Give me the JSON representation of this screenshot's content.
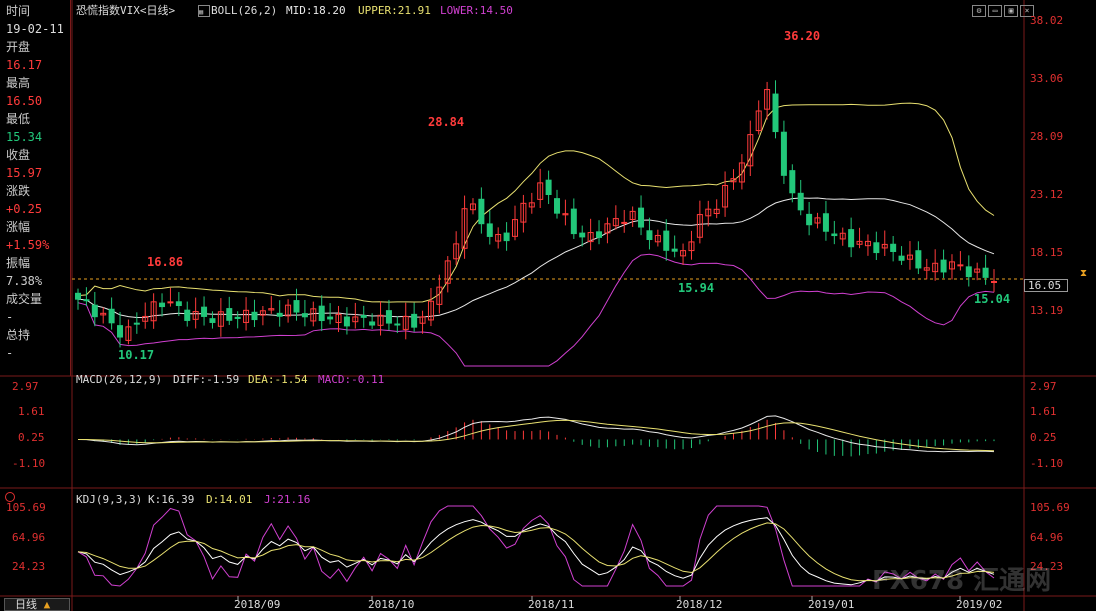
{
  "header": {
    "title": "恐慌指数VIX",
    "period": "<日线>",
    "boll_label": "BOLL(26,2)",
    "boll_mid": "MID:18.20",
    "boll_upper": "UPPER:21.91",
    "boll_lower": "LOWER:14.50",
    "macd_label": "MACD(26,12,9)",
    "macd_diff": "DIFF:-1.59",
    "macd_dea": "DEA:-1.54",
    "macd_macd": "MACD:-0.11",
    "kdj_label": "KDJ(9,3,3)",
    "kdj_k": "K:16.39",
    "kdj_d": "D:14.01",
    "kdj_j": "J:21.16"
  },
  "info_panel": {
    "time_label": "时间",
    "time_value": "19-02-11",
    "open_label": "开盘",
    "open_value": "16.17",
    "high_label": "最高",
    "high_value": "16.50",
    "low_label": "最低",
    "low_value": "15.34",
    "close_label": "收盘",
    "close_value": "15.97",
    "change_label": "涨跌",
    "change_value": "+0.25",
    "pct_label": "涨幅",
    "pct_value": "+1.59%",
    "amp_label": "振幅",
    "amp_value": "7.38%",
    "vol_label": "成交量",
    "vol_value": "-",
    "oi_label": "总持",
    "oi_value": "-"
  },
  "price_axis": [
    "38.02",
    "33.06",
    "28.09",
    "23.12",
    "18.15",
    "13.19"
  ],
  "price_current": "16.05",
  "macd_axis": [
    "2.97",
    "1.61",
    "0.25",
    "-1.10"
  ],
  "kdj_axis": [
    "105.69",
    "64.96",
    "24.23"
  ],
  "annotations": {
    "a1": "16.86",
    "a2": "10.17",
    "a3": "28.84",
    "a4": "15.94",
    "a5": "36.20",
    "a6": "15.04"
  },
  "x_axis": [
    "2018/09",
    "2018/10",
    "2018/11",
    "2018/12",
    "2019/01",
    "2019/02"
  ],
  "footer": {
    "period_button": "日线"
  },
  "watermark": "FX678 汇通网",
  "colors": {
    "up": "#ff3b3b",
    "down": "#22c77a",
    "mid": "#e8e8e8",
    "upper": "#e8e070",
    "lower": "#d040d0",
    "k": "#ffffff",
    "d": "#e8e070",
    "j": "#d040d0"
  },
  "chart_data": [
    {
      "type": "candlestick",
      "title": "恐慌指数VIX",
      "x": [
        "2018/09",
        "2018/10",
        "2018/11",
        "2018/12",
        "2019/01",
        "2019/02"
      ],
      "ylim": [
        13.19,
        38.02
      ],
      "series": [
        {
          "name": "VIX",
          "annotations_high": [
            16.86,
            28.84,
            36.2
          ],
          "annotations_low": [
            10.17,
            15.94,
            15.04
          ],
          "last_bar": {
            "open": 16.17,
            "high": 16.5,
            "low": 15.34,
            "close": 15.97
          }
        },
        {
          "name": "MID",
          "last": 18.2
        },
        {
          "name": "UPPER",
          "last": 21.91
        },
        {
          "name": "LOWER",
          "last": 14.5
        }
      ]
    },
    {
      "type": "bar+line",
      "title": "MACD(26,12,9)",
      "ylim": [
        -1.1,
        2.97
      ],
      "series": [
        {
          "name": "DIFF",
          "last": -1.59
        },
        {
          "name": "DEA",
          "last": -1.54
        },
        {
          "name": "MACD",
          "last": -0.11
        }
      ]
    },
    {
      "type": "line",
      "title": "KDJ(9,3,3)",
      "ylim": [
        24.23,
        105.69
      ],
      "series": [
        {
          "name": "K",
          "last": 16.39
        },
        {
          "name": "D",
          "last": 14.01
        },
        {
          "name": "J",
          "last": 21.16
        }
      ]
    }
  ]
}
